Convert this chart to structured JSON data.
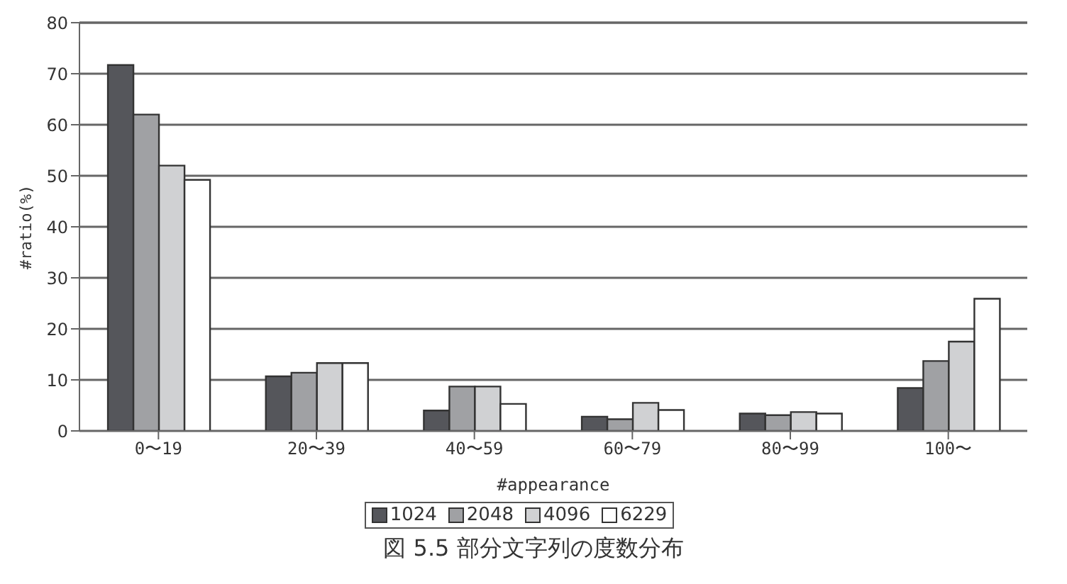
{
  "chart_data": {
    "type": "bar",
    "xlabel": "#appearance",
    "ylabel": "#ratio(%)",
    "categories": [
      "0〜19",
      "20〜39",
      "40〜59",
      "60〜79",
      "80〜99",
      "100〜"
    ],
    "series": [
      {
        "name": "1024",
        "color": "#55565b",
        "values": [
          71.7,
          10.7,
          4.0,
          2.8,
          3.4,
          8.4
        ]
      },
      {
        "name": "2048",
        "color": "#a0a1a4",
        "values": [
          62,
          11.4,
          8.7,
          2.3,
          3.1,
          13.7
        ]
      },
      {
        "name": "4096",
        "color": "#d0d1d3",
        "values": [
          52,
          13.3,
          8.7,
          5.5,
          3.7,
          17.5
        ]
      },
      {
        "name": "6229",
        "color": "#ffffff",
        "values": [
          49.2,
          13.3,
          5.3,
          4.1,
          3.4,
          25.9
        ]
      }
    ],
    "ylim": [
      0,
      80
    ],
    "yticks": [
      0,
      10,
      20,
      30,
      40,
      50,
      60,
      70,
      80
    ],
    "grid": "y",
    "legend": "bottom",
    "annotations": [
      "図 5.5 部分文字列の度数分布"
    ]
  }
}
